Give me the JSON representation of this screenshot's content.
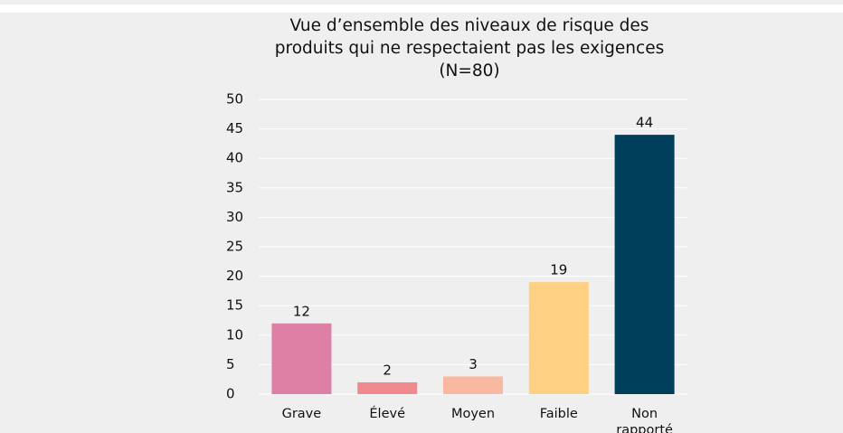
{
  "chart_data": {
    "type": "bar",
    "title": "Vue d’ensemble des niveaux de risque des produits qui ne respectaient pas les exigences (N=80)",
    "categories": [
      "Grave",
      "Élevé",
      "Moyen",
      "Faible",
      "Non rapporté"
    ],
    "values": [
      12,
      2,
      3,
      19,
      44
    ],
    "colors": [
      "#de7fa6",
      "#f08a8f",
      "#f9b9a0",
      "#fdd083",
      "#003f5c"
    ],
    "ylim": [
      0,
      50
    ],
    "yticks": [
      0,
      5,
      10,
      15,
      20,
      25,
      30,
      35,
      40,
      45,
      50
    ],
    "grid": true
  }
}
